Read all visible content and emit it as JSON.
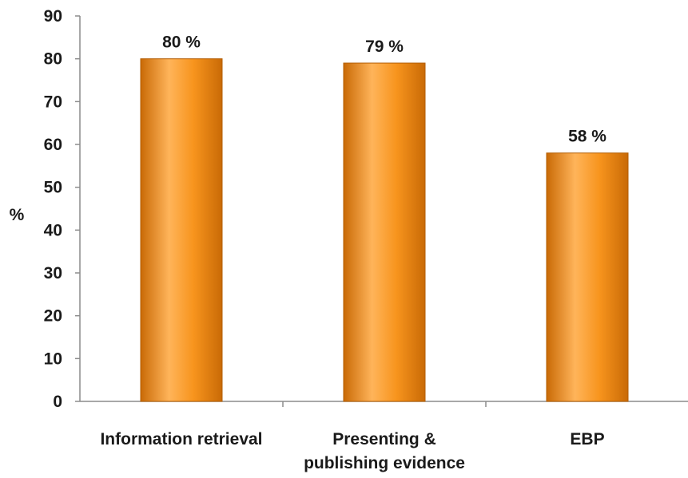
{
  "chart_data": {
    "type": "bar",
    "title": "",
    "xlabel": "",
    "ylabel": "%",
    "ylim": [
      0,
      90
    ],
    "yticks": [
      0,
      10,
      20,
      30,
      40,
      50,
      60,
      70,
      80,
      90
    ],
    "grid": false,
    "legend": "none",
    "categories": [
      [
        "Information retrieval"
      ],
      [
        "Presenting &",
        "publishing evidence"
      ],
      [
        "EBP"
      ]
    ],
    "values": [
      80,
      79,
      58
    ],
    "data_labels": [
      "80 %",
      "79 %",
      "58 %"
    ],
    "colors": {
      "bar_light": "#ffb45a",
      "bar_mid": "#f7941d",
      "bar_dark": "#c96a06",
      "bar_edge": "#b35c00",
      "axis": "#8c8c8c"
    }
  }
}
